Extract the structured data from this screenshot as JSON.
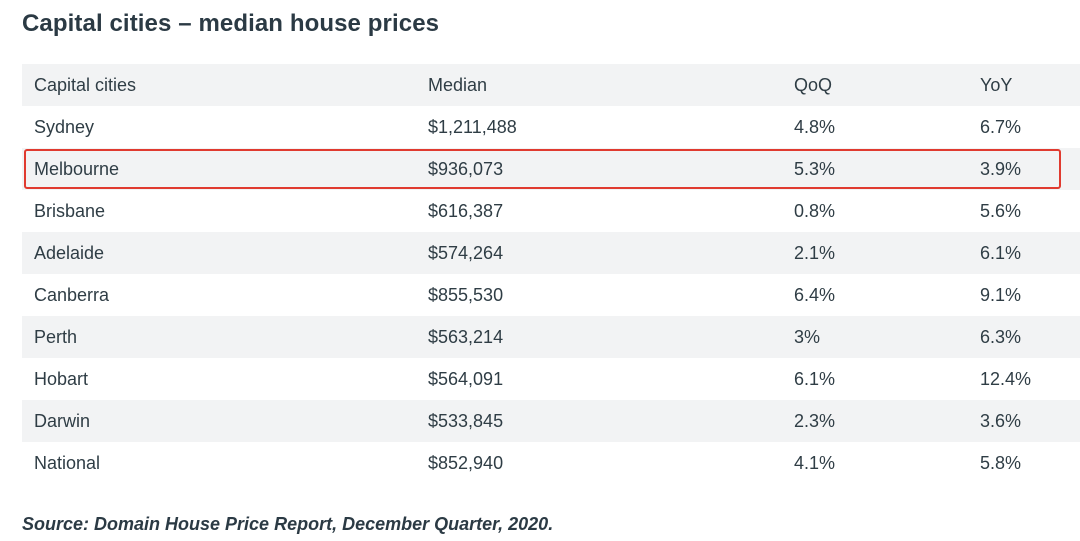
{
  "title": "Capital cities – median house prices",
  "table": {
    "headers": [
      "Capital cities",
      "Median",
      "QoQ",
      "YoY"
    ],
    "rows": [
      [
        "Sydney",
        "$1,211,488",
        "4.8%",
        "6.7%"
      ],
      [
        "Melbourne",
        "$936,073",
        "5.3%",
        "3.9%"
      ],
      [
        "Brisbane",
        "$616,387",
        "0.8%",
        "5.6%"
      ],
      [
        "Adelaide",
        "$574,264",
        "2.1%",
        "6.1%"
      ],
      [
        "Canberra",
        "$855,530",
        "6.4%",
        "9.1%"
      ],
      [
        "Perth",
        "$563,214",
        "3%",
        "6.3%"
      ],
      [
        "Hobart",
        "$564,091",
        "6.1%",
        "12.4%"
      ],
      [
        "Darwin",
        "$533,845",
        "2.3%",
        "3.6%"
      ],
      [
        "National",
        "$852,940",
        "4.1%",
        "5.8%"
      ]
    ]
  },
  "highlight": {
    "row": "Melbourne",
    "color": "#e03a2f"
  },
  "source": "Source: Domain House Price Report, December Quarter, 2020."
}
